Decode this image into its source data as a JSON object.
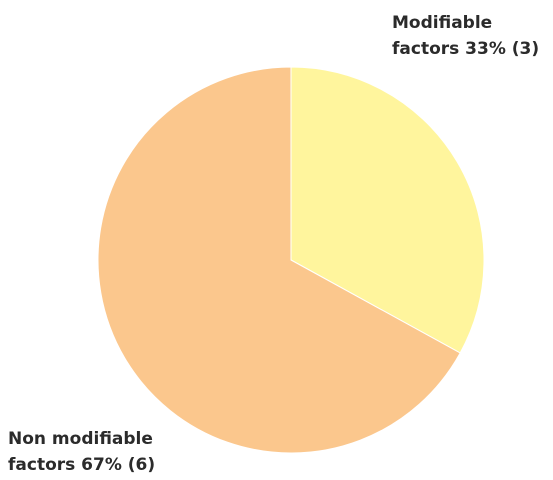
{
  "chart_data": {
    "type": "pie",
    "title": "",
    "start_angle_deg": 0,
    "direction": "clockwise",
    "slices": [
      {
        "label_lines": [
          "Modifiable",
          "factors 33% (3)"
        ],
        "percent": 33,
        "count": 3,
        "color": "#FFF59D"
      },
      {
        "label_lines": [
          "Non modifiable",
          "factors 67% (6)"
        ],
        "percent": 67,
        "count": 6,
        "color": "#FBC78D"
      }
    ]
  }
}
